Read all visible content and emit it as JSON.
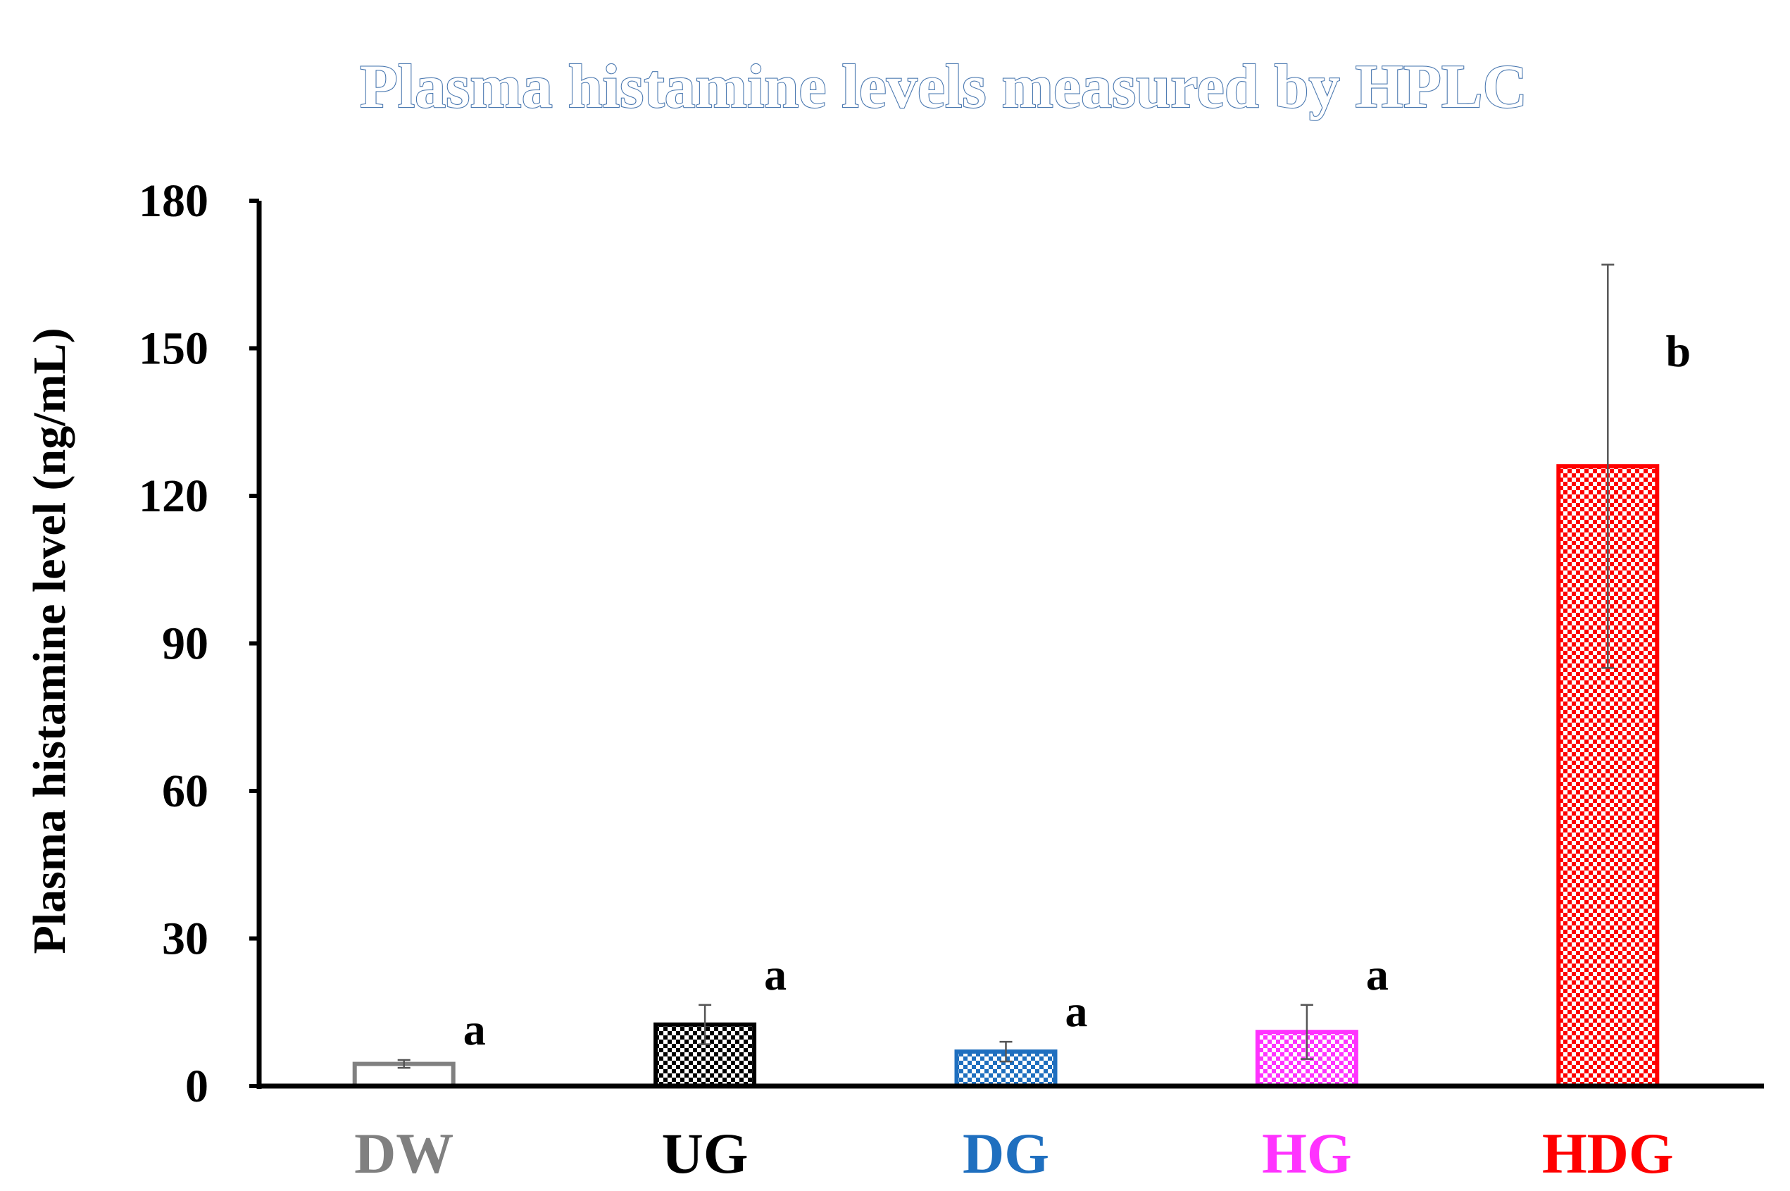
{
  "chart_data": {
    "type": "bar",
    "title": "Plasma histamine levels measured by HPLC",
    "xlabel": "",
    "ylabel": "Plasma histamine level (ng/mL)",
    "ylim": [
      0,
      180
    ],
    "yticks": [
      "0",
      "30",
      "60",
      "90",
      "120",
      "150",
      "180"
    ],
    "grid": false,
    "legend": "none",
    "categories": [
      "DW",
      "UG",
      "DG",
      "HG",
      "HDG"
    ],
    "values": [
      4.5,
      12.5,
      7,
      11,
      126
    ],
    "errors": [
      0.8,
      4,
      2,
      5.5,
      41
    ],
    "significance_labels": [
      "a",
      "a",
      "a",
      "a",
      "b"
    ],
    "category_colors": [
      "#808080",
      "#000000",
      "#1f6fbf",
      "#ff33ff",
      "#ff0000"
    ],
    "bar_fill_colors": [
      "#ffffff",
      "#000000",
      "#1f6fbf",
      "#ff33ff",
      "#ff0000"
    ],
    "title_color": "#4a78b0"
  }
}
